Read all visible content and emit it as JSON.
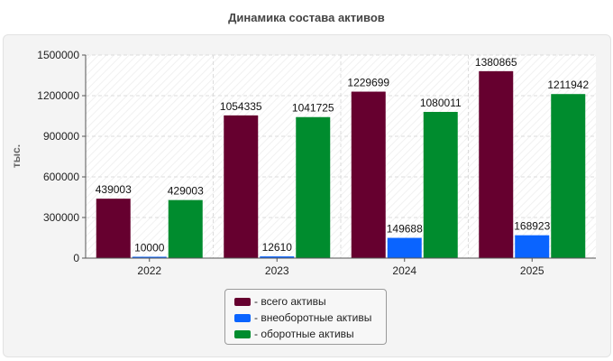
{
  "chart_data": {
    "type": "bar",
    "title": "Динамика состава активов",
    "ylabel": "тыс.",
    "xlabel": "",
    "categories": [
      "2022",
      "2023",
      "2024",
      "2025"
    ],
    "ylim": [
      0,
      1500000
    ],
    "yticks": [
      0,
      300000,
      600000,
      900000,
      1200000,
      1500000
    ],
    "grid": true,
    "legend_position": "bottom-center",
    "series": [
      {
        "name": "- всего активы",
        "color": "#66002f",
        "values": [
          439003,
          1054335,
          1229699,
          1380865
        ]
      },
      {
        "name": "- внеоборотные активы",
        "color": "#0a64ff",
        "values": [
          10000,
          12610,
          149688,
          168923
        ]
      },
      {
        "name": "- оборотные активы",
        "color": "#008c2e",
        "values": [
          429003,
          1041725,
          1080011,
          1211942
        ]
      }
    ]
  }
}
